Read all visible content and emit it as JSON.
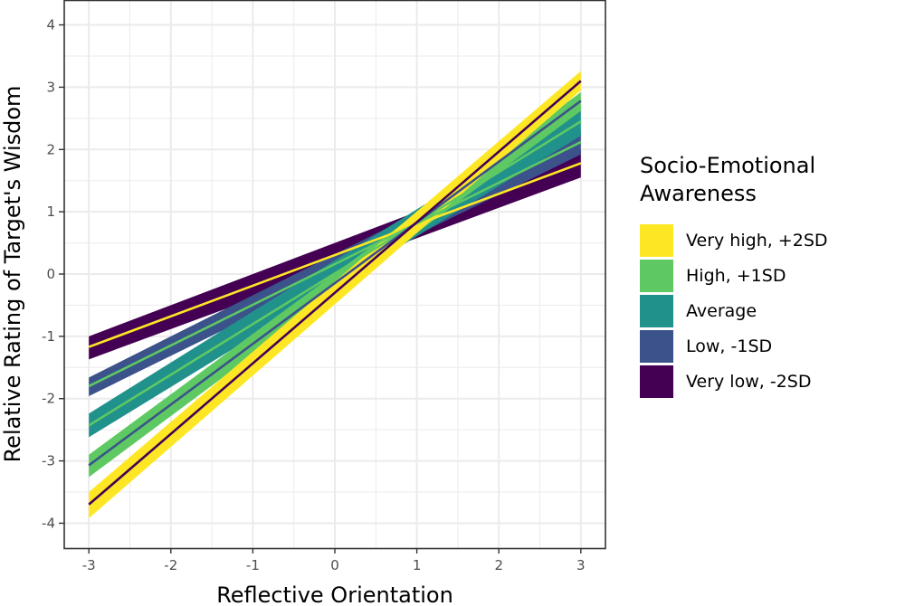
{
  "chart_data": {
    "type": "line",
    "xlabel": "Reflective Orientation",
    "ylabel": "Relative Rating of Target's Wisdom",
    "xlim": [
      -3.3,
      3.3
    ],
    "ylim": [
      -4.4,
      4.4
    ],
    "x_ticks": [
      -3,
      -2,
      -1,
      0,
      1,
      2,
      3
    ],
    "y_ticks": [
      -4,
      -3,
      -2,
      -1,
      0,
      1,
      2,
      3,
      4
    ],
    "x_tick_labels": [
      "-3",
      "-2",
      "-1",
      "0",
      "1",
      "2",
      "3"
    ],
    "y_tick_labels": [
      "-4",
      "-3",
      "-2",
      "-1",
      "0",
      "1",
      "2",
      "3",
      "4"
    ],
    "grid": true,
    "legend": {
      "title": "Socio-Emotional Awareness",
      "placement": "right"
    },
    "series": [
      {
        "name": "Very high, +2SD",
        "color": "#fde725",
        "line_color": "#440154",
        "x": [
          -3,
          3
        ],
        "y": [
          -3.7,
          3.1
        ],
        "lower": [
          -3.92,
          2.95
        ],
        "upper": [
          -3.5,
          3.26
        ]
      },
      {
        "name": "High, +1SD",
        "color": "#5ec962",
        "line_color": "#3b528b",
        "x": [
          -3,
          3
        ],
        "y": [
          -3.07,
          2.78
        ],
        "lower": [
          -3.26,
          2.62
        ],
        "upper": [
          -2.9,
          2.92
        ]
      },
      {
        "name": "Average",
        "color": "#21918c",
        "line_color": "#5ec962",
        "x": [
          -3,
          3
        ],
        "y": [
          -2.43,
          2.45
        ],
        "lower": [
          -2.62,
          2.22
        ],
        "upper": [
          -2.24,
          2.68
        ]
      },
      {
        "name": "Low, -1SD",
        "color": "#3b528b",
        "line_color": "#5ec962",
        "x": [
          -3,
          3
        ],
        "y": [
          -1.8,
          2.12
        ],
        "lower": [
          -1.96,
          1.92
        ],
        "upper": [
          -1.66,
          2.3
        ]
      },
      {
        "name": "Very low, -2SD",
        "color": "#440154",
        "line_color": "#fde725",
        "x": [
          -3,
          3
        ],
        "y": [
          -1.17,
          1.78
        ],
        "lower": [
          -1.37,
          1.55
        ],
        "upper": [
          -1.0,
          2.0
        ]
      }
    ]
  }
}
